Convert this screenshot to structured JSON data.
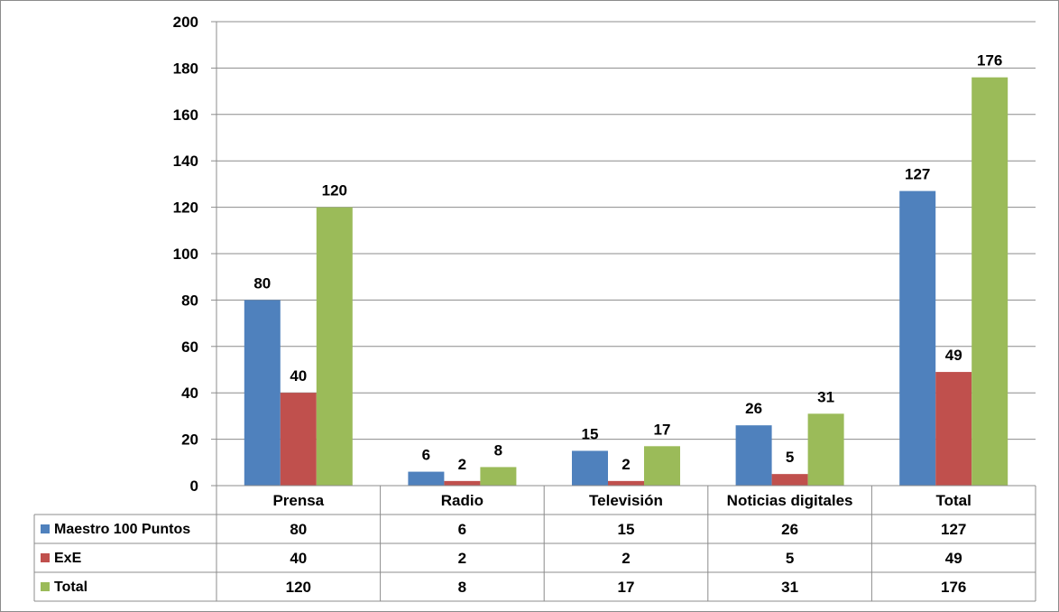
{
  "chart_data": {
    "type": "bar",
    "categories": [
      "Prensa",
      "Radio",
      "Televisión",
      "Noticias digitales",
      "Total"
    ],
    "series": [
      {
        "name": "Maestro 100 Puntos",
        "values": [
          80,
          6,
          15,
          26,
          127
        ],
        "color": "#4F81BD"
      },
      {
        "name": "ExE",
        "values": [
          40,
          2,
          2,
          5,
          49
        ],
        "color": "#C0504D"
      },
      {
        "name": "Total",
        "values": [
          120,
          8,
          17,
          31,
          176
        ],
        "color": "#9BBB59"
      }
    ],
    "ylim": [
      0,
      200
    ],
    "yticks": [
      0,
      20,
      40,
      60,
      80,
      100,
      120,
      140,
      160,
      180,
      200
    ],
    "grid": true,
    "legend": "data-table-below"
  }
}
